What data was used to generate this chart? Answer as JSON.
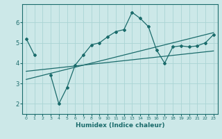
{
  "xlabel": "Humidex (Indice chaleur)",
  "bg_color": "#cce8e8",
  "line_color": "#1a6b6b",
  "grid_color": "#aad4d4",
  "x_values": [
    0,
    1,
    2,
    3,
    4,
    5,
    6,
    7,
    8,
    9,
    10,
    11,
    12,
    13,
    14,
    15,
    16,
    17,
    18,
    19,
    20,
    21,
    22,
    23
  ],
  "main_line": [
    5.2,
    4.4,
    null,
    3.4,
    2.0,
    2.8,
    3.9,
    4.4,
    4.9,
    5.0,
    5.3,
    5.55,
    5.65,
    6.5,
    6.2,
    5.8,
    4.65,
    4.0,
    4.8,
    4.85,
    4.8,
    4.85,
    5.0,
    5.4
  ],
  "trend_line1_x": [
    0,
    23
  ],
  "trend_line1_y": [
    3.6,
    4.6
  ],
  "trend_line2_x": [
    0,
    23
  ],
  "trend_line2_y": [
    3.2,
    5.5
  ],
  "ylim": [
    1.5,
    6.9
  ],
  "xlim": [
    -0.5,
    23.5
  ],
  "yticks": [
    2,
    3,
    4,
    5,
    6
  ],
  "xticks": [
    0,
    1,
    2,
    3,
    4,
    5,
    6,
    7,
    8,
    9,
    10,
    11,
    12,
    13,
    14,
    15,
    16,
    17,
    18,
    19,
    20,
    21,
    22,
    23
  ]
}
